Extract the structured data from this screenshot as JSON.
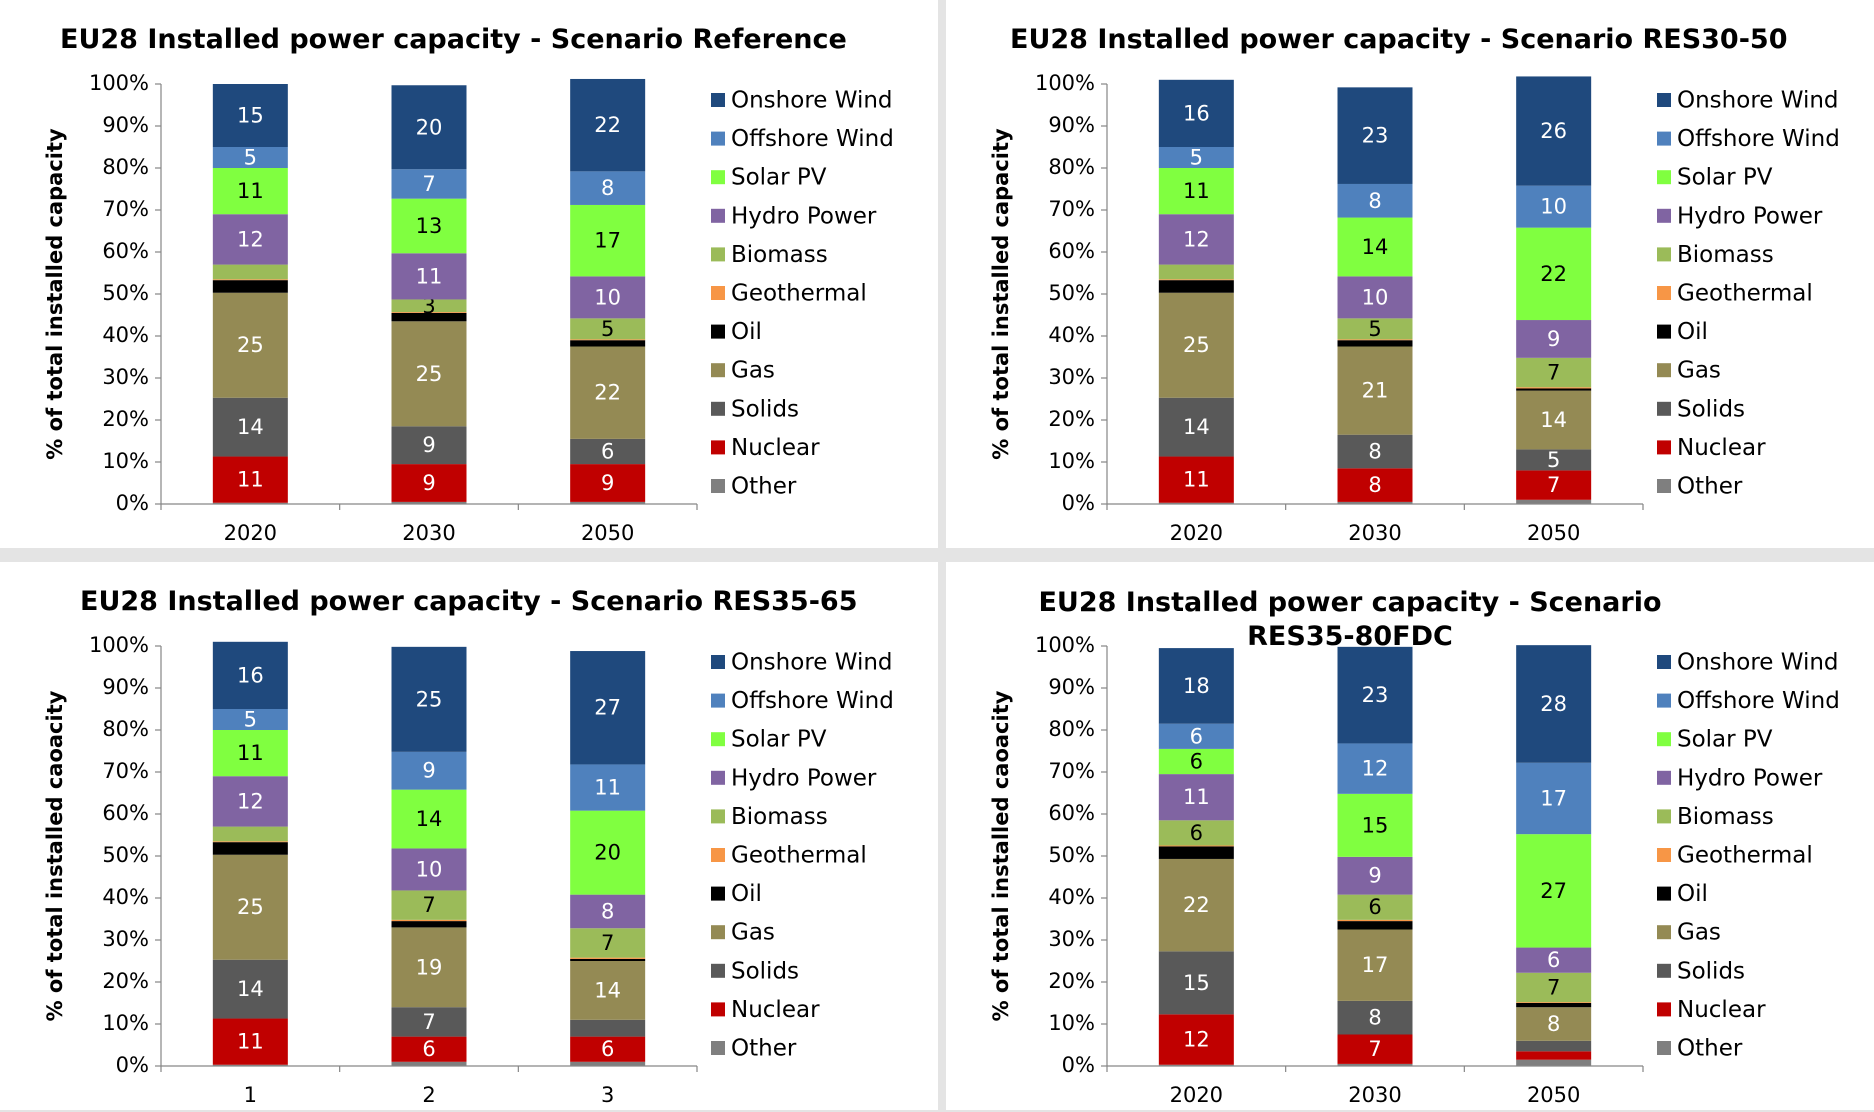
{
  "chart_data": [
    {
      "type": "stacked_bar",
      "title": "EU28 Installed power capacity - Scenario Reference",
      "y_label": "% of total installed capacity",
      "categories": [
        "2020",
        "2030",
        "2050"
      ],
      "ylim": [
        0,
        100
      ],
      "yticks": [
        {
          "value": 0,
          "label": "0%"
        },
        {
          "value": 10,
          "label": "10%"
        },
        {
          "value": 20,
          "label": "20%"
        },
        {
          "value": 30,
          "label": "30%"
        },
        {
          "value": 40,
          "label": "40%"
        },
        {
          "value": 50,
          "label": "50%"
        },
        {
          "value": 60,
          "label": "60%"
        },
        {
          "value": 70,
          "label": "70%"
        },
        {
          "value": 80,
          "label": "80%"
        },
        {
          "value": 90,
          "label": "90%"
        },
        {
          "value": 100,
          "label": "100%"
        }
      ],
      "series": [
        {
          "name": "Other",
          "color": "#7f7f7f",
          "values": [
            0.3,
            0.5,
            0.5
          ],
          "value_labels": [
            null,
            null,
            null
          ]
        },
        {
          "name": "Nuclear",
          "color": "#c00000",
          "values": [
            11,
            9,
            9
          ],
          "value_labels": [
            "11",
            "9",
            "9"
          ]
        },
        {
          "name": "Solids",
          "color": "#595959",
          "values": [
            14,
            9,
            6
          ],
          "value_labels": [
            "14",
            "9",
            "6"
          ]
        },
        {
          "name": "Gas",
          "color": "#948a54",
          "values": [
            25,
            25,
            22
          ],
          "value_labels": [
            "25",
            "25",
            "22"
          ]
        },
        {
          "name": "Oil",
          "color": "#000000",
          "values": [
            3,
            2,
            1.5
          ],
          "value_labels": [
            null,
            null,
            null
          ]
        },
        {
          "name": "Geothermal",
          "color": "#f79646",
          "values": [
            0.2,
            0.2,
            0.2
          ],
          "value_labels": [
            null,
            null,
            null
          ]
        },
        {
          "name": "Biomass",
          "color": "#9bbb59",
          "values": [
            3.5,
            3,
            5
          ],
          "value_labels": [
            null,
            "3",
            "5"
          ]
        },
        {
          "name": "Hydro Power",
          "color": "#8064a2",
          "values": [
            12,
            11,
            10
          ],
          "value_labels": [
            "12",
            "11",
            "10"
          ]
        },
        {
          "name": "Solar PV",
          "color": "#80ff40",
          "values": [
            11,
            13,
            17
          ],
          "value_labels": [
            "11",
            "13",
            "17"
          ]
        },
        {
          "name": "Offshore Wind",
          "color": "#4f81bd",
          "values": [
            5,
            7,
            8
          ],
          "value_labels": [
            "5",
            "7",
            "8"
          ]
        },
        {
          "name": "Onshore Wind",
          "color": "#1f497d",
          "values": [
            15,
            20,
            22
          ],
          "value_labels": [
            "15",
            "20",
            "22"
          ]
        }
      ]
    },
    {
      "type": "stacked_bar",
      "title": "EU28 Installed power capacity - Scenario RES30-50",
      "y_label": "% of total installed capacity",
      "categories": [
        "2020",
        "2030",
        "2050"
      ],
      "ylim": [
        0,
        100
      ],
      "yticks": [
        {
          "value": 0,
          "label": "0%"
        },
        {
          "value": 10,
          "label": "10%"
        },
        {
          "value": 20,
          "label": "20%"
        },
        {
          "value": 30,
          "label": "30%"
        },
        {
          "value": 40,
          "label": "40%"
        },
        {
          "value": 50,
          "label": "50%"
        },
        {
          "value": 60,
          "label": "60%"
        },
        {
          "value": 70,
          "label": "70%"
        },
        {
          "value": 80,
          "label": "80%"
        },
        {
          "value": 90,
          "label": "90%"
        },
        {
          "value": 100,
          "label": "100%"
        }
      ],
      "series": [
        {
          "name": "Other",
          "color": "#7f7f7f",
          "values": [
            0.3,
            0.5,
            1
          ],
          "value_labels": [
            null,
            null,
            null
          ]
        },
        {
          "name": "Nuclear",
          "color": "#c00000",
          "values": [
            11,
            8,
            7
          ],
          "value_labels": [
            "11",
            "8",
            "7"
          ]
        },
        {
          "name": "Solids",
          "color": "#595959",
          "values": [
            14,
            8,
            5
          ],
          "value_labels": [
            "14",
            "8",
            "5"
          ]
        },
        {
          "name": "Gas",
          "color": "#948a54",
          "values": [
            25,
            21,
            14
          ],
          "value_labels": [
            "25",
            "21",
            "14"
          ]
        },
        {
          "name": "Oil",
          "color": "#000000",
          "values": [
            3,
            1.5,
            0.5
          ],
          "value_labels": [
            null,
            null,
            null
          ]
        },
        {
          "name": "Geothermal",
          "color": "#f79646",
          "values": [
            0.2,
            0.2,
            0.3
          ],
          "value_labels": [
            null,
            null,
            null
          ]
        },
        {
          "name": "Biomass",
          "color": "#9bbb59",
          "values": [
            3.5,
            5,
            7
          ],
          "value_labels": [
            null,
            "5",
            "7"
          ]
        },
        {
          "name": "Hydro Power",
          "color": "#8064a2",
          "values": [
            12,
            10,
            9
          ],
          "value_labels": [
            "12",
            "10",
            "9"
          ]
        },
        {
          "name": "Solar PV",
          "color": "#80ff40",
          "values": [
            11,
            14,
            22
          ],
          "value_labels": [
            "11",
            "14",
            "22"
          ]
        },
        {
          "name": "Offshore Wind",
          "color": "#4f81bd",
          "values": [
            5,
            8,
            10
          ],
          "value_labels": [
            "5",
            "8",
            "10"
          ]
        },
        {
          "name": "Onshore Wind",
          "color": "#1f497d",
          "values": [
            16,
            23,
            26
          ],
          "value_labels": [
            "16",
            "23",
            "26"
          ]
        }
      ]
    },
    {
      "type": "stacked_bar",
      "title": "EU28 Installed power capacity - Scenario RES35-65",
      "y_label": "% of total installed caoacity",
      "categories": [
        "1",
        "2",
        "3"
      ],
      "ylim": [
        0,
        100
      ],
      "yticks": [
        {
          "value": 0,
          "label": "0%"
        },
        {
          "value": 10,
          "label": "10%"
        },
        {
          "value": 20,
          "label": "20%"
        },
        {
          "value": 30,
          "label": "30%"
        },
        {
          "value": 40,
          "label": "40%"
        },
        {
          "value": 50,
          "label": "50%"
        },
        {
          "value": 60,
          "label": "60%"
        },
        {
          "value": 70,
          "label": "70%"
        },
        {
          "value": 80,
          "label": "80%"
        },
        {
          "value": 90,
          "label": "90%"
        },
        {
          "value": 100,
          "label": "100%"
        }
      ],
      "series": [
        {
          "name": "Other",
          "color": "#7f7f7f",
          "values": [
            0.3,
            1,
            1
          ],
          "value_labels": [
            null,
            null,
            null
          ]
        },
        {
          "name": "Nuclear",
          "color": "#c00000",
          "values": [
            11,
            6,
            6
          ],
          "value_labels": [
            "11",
            "6",
            "6"
          ]
        },
        {
          "name": "Solids",
          "color": "#595959",
          "values": [
            14,
            7,
            4
          ],
          "value_labels": [
            "14",
            "7",
            null
          ]
        },
        {
          "name": "Gas",
          "color": "#948a54",
          "values": [
            25,
            19,
            14
          ],
          "value_labels": [
            "25",
            "19",
            "14"
          ]
        },
        {
          "name": "Oil",
          "color": "#000000",
          "values": [
            3,
            1.5,
            0.5
          ],
          "value_labels": [
            null,
            null,
            null
          ]
        },
        {
          "name": "Geothermal",
          "color": "#f79646",
          "values": [
            0.2,
            0.3,
            0.3
          ],
          "value_labels": [
            null,
            null,
            null
          ]
        },
        {
          "name": "Biomass",
          "color": "#9bbb59",
          "values": [
            3.5,
            7,
            7
          ],
          "value_labels": [
            null,
            "7",
            "7"
          ]
        },
        {
          "name": "Hydro Power",
          "color": "#8064a2",
          "values": [
            12,
            10,
            8
          ],
          "value_labels": [
            "12",
            "10",
            "8"
          ]
        },
        {
          "name": "Solar PV",
          "color": "#80ff40",
          "values": [
            11,
            14,
            20
          ],
          "value_labels": [
            "11",
            "14",
            "20"
          ]
        },
        {
          "name": "Offshore Wind",
          "color": "#4f81bd",
          "values": [
            5,
            9,
            11
          ],
          "value_labels": [
            "5",
            "9",
            "11"
          ]
        },
        {
          "name": "Onshore Wind",
          "color": "#1f497d",
          "values": [
            16,
            25,
            27
          ],
          "value_labels": [
            "16",
            "25",
            "27"
          ]
        }
      ]
    },
    {
      "type": "stacked_bar",
      "title": "EU28 Installed power capacity - Scenario RES35-80FDC",
      "y_label": "% of total installed caoacity",
      "categories": [
        "2020",
        "2030",
        "2050"
      ],
      "ylim": [
        0,
        100
      ],
      "yticks": [
        {
          "value": 0,
          "label": "0%"
        },
        {
          "value": 10,
          "label": "10%"
        },
        {
          "value": 20,
          "label": "20%"
        },
        {
          "value": 30,
          "label": "30%"
        },
        {
          "value": 40,
          "label": "40%"
        },
        {
          "value": 50,
          "label": "50%"
        },
        {
          "value": 60,
          "label": "60%"
        },
        {
          "value": 70,
          "label": "70%"
        },
        {
          "value": 80,
          "label": "80%"
        },
        {
          "value": 90,
          "label": "90%"
        },
        {
          "value": 100,
          "label": "100%"
        }
      ],
      "series": [
        {
          "name": "Other",
          "color": "#7f7f7f",
          "values": [
            0.3,
            0.5,
            1.5
          ],
          "value_labels": [
            null,
            null,
            null
          ]
        },
        {
          "name": "Nuclear",
          "color": "#c00000",
          "values": [
            12,
            7,
            2
          ],
          "value_labels": [
            "12",
            "7",
            null
          ]
        },
        {
          "name": "Solids",
          "color": "#595959",
          "values": [
            15,
            8,
            2.5
          ],
          "value_labels": [
            "15",
            "8",
            null
          ]
        },
        {
          "name": "Gas",
          "color": "#948a54",
          "values": [
            22,
            17,
            8
          ],
          "value_labels": [
            "22",
            "17",
            "8"
          ]
        },
        {
          "name": "Oil",
          "color": "#000000",
          "values": [
            3,
            2,
            1
          ],
          "value_labels": [
            null,
            null,
            null
          ]
        },
        {
          "name": "Geothermal",
          "color": "#f79646",
          "values": [
            0.2,
            0.3,
            0.2
          ],
          "value_labels": [
            null,
            null,
            null
          ]
        },
        {
          "name": "Biomass",
          "color": "#9bbb59",
          "values": [
            6,
            6,
            7
          ],
          "value_labels": [
            "6",
            "6",
            "7"
          ]
        },
        {
          "name": "Hydro Power",
          "color": "#8064a2",
          "values": [
            11,
            9,
            6
          ],
          "value_labels": [
            "11",
            "9",
            "6"
          ]
        },
        {
          "name": "Solar PV",
          "color": "#80ff40",
          "values": [
            6,
            15,
            27
          ],
          "value_labels": [
            "6",
            "15",
            "27"
          ]
        },
        {
          "name": "Offshore Wind",
          "color": "#4f81bd",
          "values": [
            6,
            12,
            17
          ],
          "value_labels": [
            "6",
            "12",
            "17"
          ]
        },
        {
          "name": "Onshore Wind",
          "color": "#1f497d",
          "values": [
            18,
            23,
            28
          ],
          "value_labels": [
            "18",
            "23",
            "28"
          ]
        }
      ]
    }
  ]
}
